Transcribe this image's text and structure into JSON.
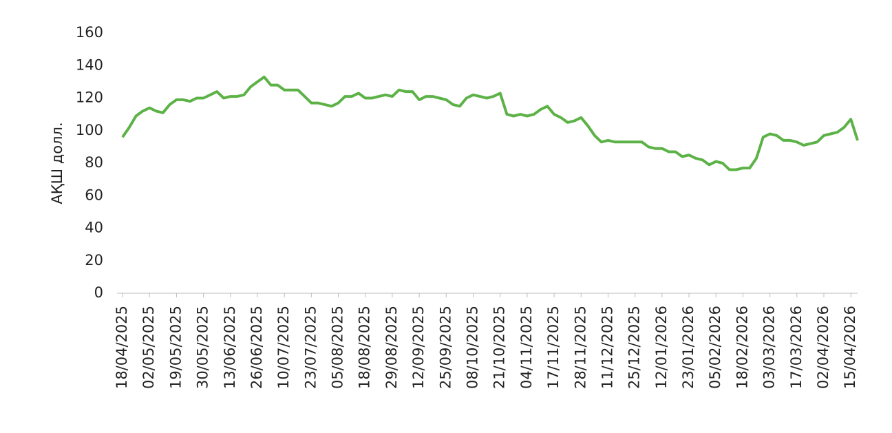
{
  "chart_data": {
    "type": "line",
    "y_label": "АҚШ долл.",
    "categories": [
      "18/04/2025",
      null,
      null,
      null,
      "02/05/2025",
      null,
      null,
      null,
      "19/05/2025",
      null,
      null,
      null,
      "30/05/2025",
      null,
      null,
      null,
      "13/06/2025",
      null,
      null,
      null,
      "26/06/2025",
      null,
      null,
      null,
      "10/07/2025",
      null,
      null,
      null,
      "23/07/2025",
      null,
      null,
      null,
      "05/08/2025",
      null,
      null,
      null,
      "18/08/2025",
      null,
      null,
      null,
      "29/08/2025",
      null,
      null,
      null,
      "12/09/2025",
      null,
      null,
      null,
      "25/09/2025",
      null,
      null,
      null,
      "08/10/2025",
      null,
      null,
      null,
      "21/10/2025",
      null,
      null,
      null,
      "04/11/2025",
      null,
      null,
      null,
      "17/11/2025",
      null,
      null,
      null,
      "28/11/2025",
      null,
      null,
      null,
      "11/12/2025",
      null,
      null,
      null,
      "25/12/2025",
      null,
      null,
      null,
      "12/01/2026",
      null,
      null,
      null,
      "23/01/2026",
      null,
      null,
      null,
      "05/02/2026",
      null,
      null,
      null,
      "18/02/2026",
      null,
      null,
      null,
      "03/03/2026",
      null,
      null,
      null,
      "17/03/2026",
      null,
      null,
      null,
      "02/04/2026",
      null,
      null,
      null,
      "15/04/2026",
      null
    ],
    "values": [
      96,
      102,
      109,
      112,
      114,
      112,
      111,
      116,
      119,
      119,
      118,
      120,
      120,
      122,
      124,
      120,
      121,
      121,
      122,
      127,
      130,
      133,
      128,
      128,
      125,
      125,
      125,
      121,
      117,
      117,
      116,
      115,
      117,
      121,
      121,
      123,
      120,
      120,
      121,
      122,
      121,
      125,
      124,
      124,
      119,
      121,
      121,
      120,
      119,
      116,
      115,
      120,
      122,
      121,
      120,
      121,
      123,
      110,
      109,
      110,
      109,
      110,
      113,
      115,
      110,
      108,
      105,
      106,
      108,
      103,
      97,
      93,
      94,
      93,
      93,
      93,
      93,
      93,
      90,
      89,
      89,
      87,
      87,
      84,
      85,
      83,
      82,
      79,
      81,
      80,
      76,
      76,
      77,
      77,
      83,
      96,
      98,
      97,
      94,
      94,
      93,
      91,
      92,
      93,
      97,
      98,
      99,
      102,
      107,
      94
    ],
    "color": "#5cb247",
    "ylim": [
      0,
      160
    ],
    "yticks": [
      0,
      20,
      40,
      60,
      80,
      100,
      120,
      140,
      160
    ]
  }
}
